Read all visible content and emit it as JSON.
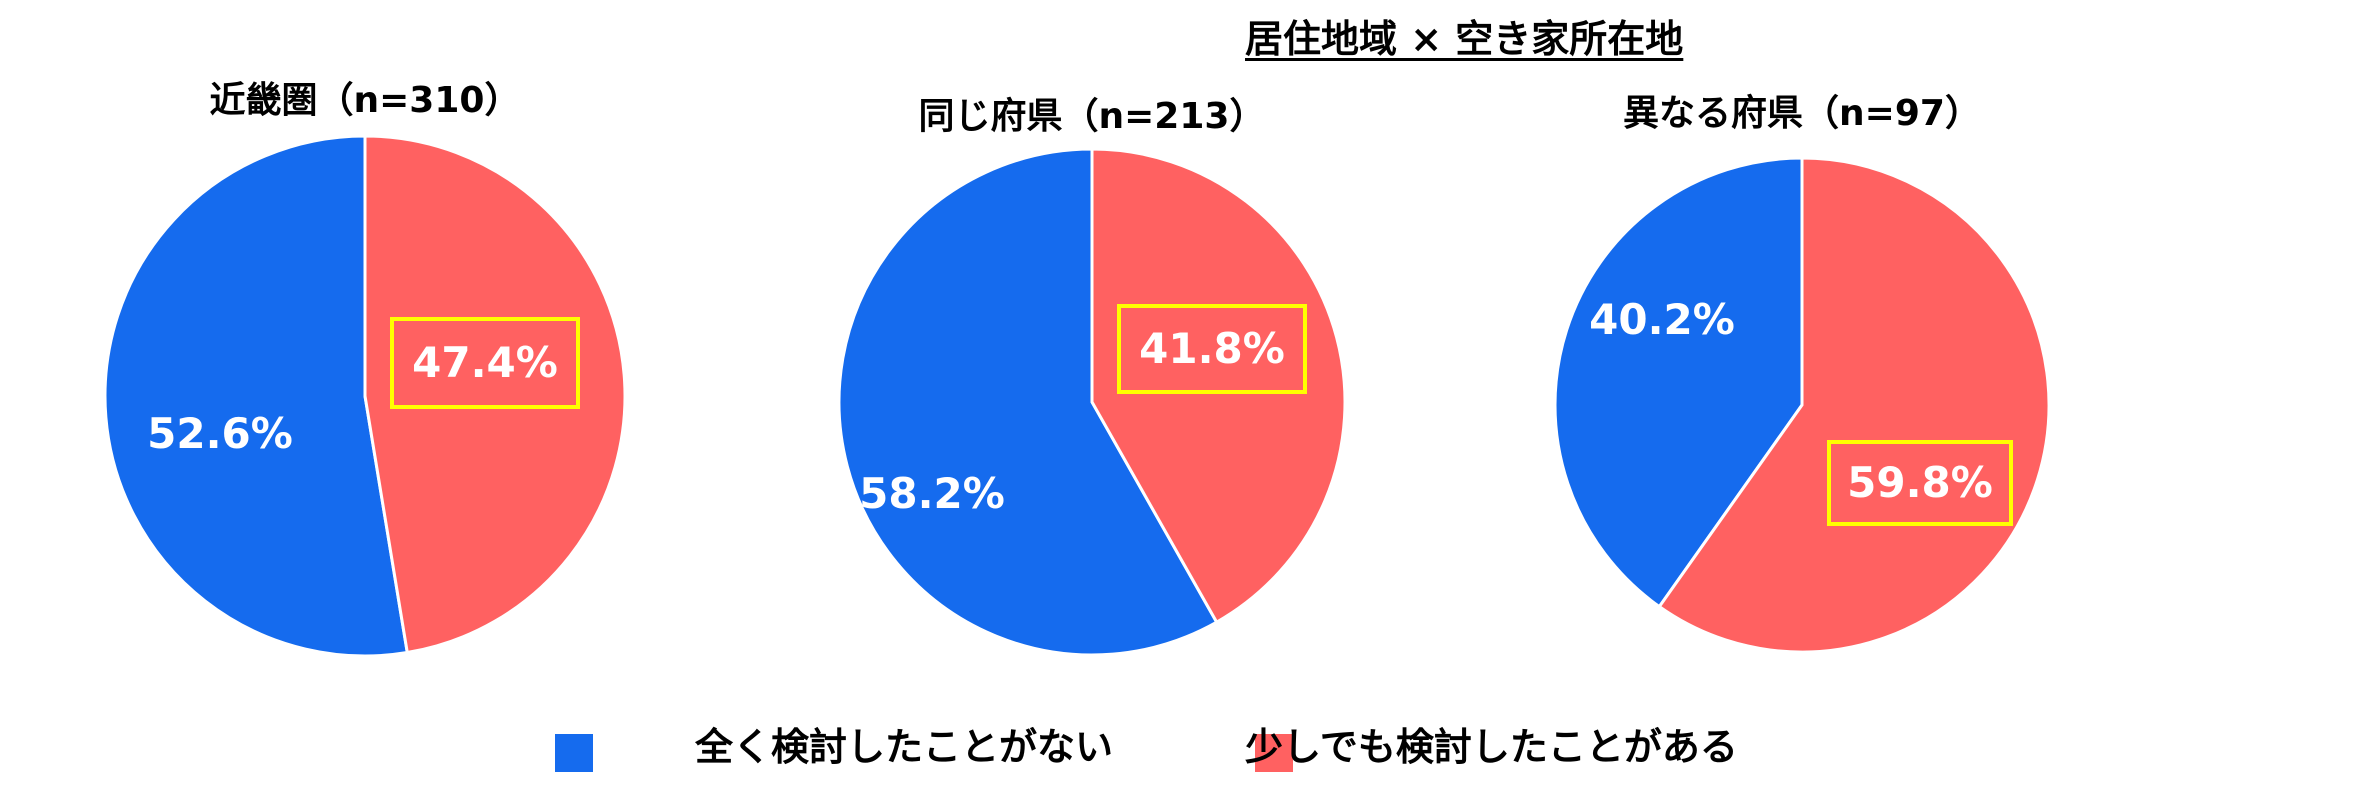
{
  "title": "居住地域 × 空き家所在地",
  "colors": {
    "never": "#156BEE",
    "considered": "#FF6161",
    "highlight": "#FFFF00",
    "label": "#FFFFFF"
  },
  "legend": [
    {
      "name": "全く検討したことがない",
      "color": "#156BEE"
    },
    {
      "name": "少しでも検討したことがある",
      "color": "#FF6161"
    }
  ],
  "chart_data": [
    {
      "type": "pie",
      "title": "近畿圏（n=310）",
      "categories": [
        "全く検討したことがない",
        "少しでも検討したことがある"
      ],
      "values": [
        52.6,
        47.4
      ],
      "labels": [
        "52.6%",
        "47.4%"
      ],
      "highlighted": "少しでも検討したことがある"
    },
    {
      "type": "pie",
      "title": "同じ府県（n=213）",
      "categories": [
        "全く検討したことがない",
        "少しでも検討したことがある"
      ],
      "values": [
        58.2,
        41.8
      ],
      "labels": [
        "58.2%",
        "41.8%"
      ],
      "highlighted": "少しでも検討したことがある"
    },
    {
      "type": "pie",
      "title": "異なる府県（n=97）",
      "categories": [
        "全く検討したことがない",
        "少しでも検討したことがある"
      ],
      "values": [
        40.2,
        59.8
      ],
      "labels": [
        "40.2%",
        "59.8%"
      ],
      "highlighted": "少しでも検討したことがある"
    }
  ]
}
